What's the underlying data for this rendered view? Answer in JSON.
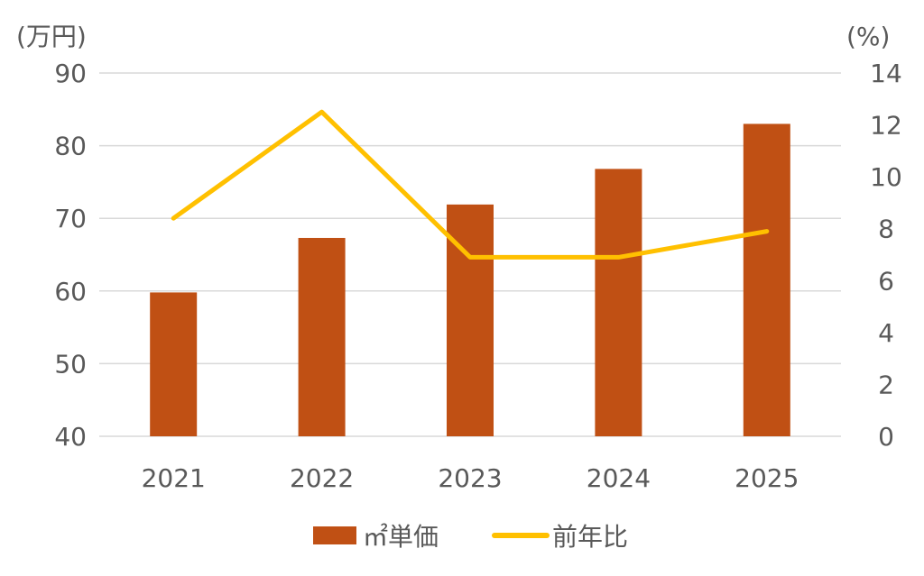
{
  "chart_data": {
    "type": "bar",
    "categories": [
      "2021",
      "2022",
      "2023",
      "2024",
      "2025"
    ],
    "series": [
      {
        "name": "㎡単価",
        "type": "bar",
        "axis": "left",
        "values": [
          59.8,
          67.3,
          71.9,
          76.8,
          83.0
        ]
      },
      {
        "name": "前年比",
        "type": "line",
        "axis": "right",
        "values": [
          8.4,
          12.5,
          6.9,
          6.9,
          7.9
        ]
      }
    ],
    "left_axis": {
      "unit_label": "(万円)",
      "ylim": [
        40,
        90
      ],
      "ticks": [
        "90",
        "80",
        "70",
        "60",
        "50",
        "40"
      ]
    },
    "right_axis": {
      "unit_label": "(%)",
      "ylim": [
        0,
        14
      ],
      "ticks": [
        "14",
        "12",
        "10",
        "8",
        "6",
        "4",
        "2",
        "0"
      ]
    },
    "grid": true,
    "legend_position": "bottom",
    "colors": {
      "bar": "#c05014",
      "line": "#ffc000",
      "grid": "#d9d9d9",
      "text": "#595959"
    }
  }
}
